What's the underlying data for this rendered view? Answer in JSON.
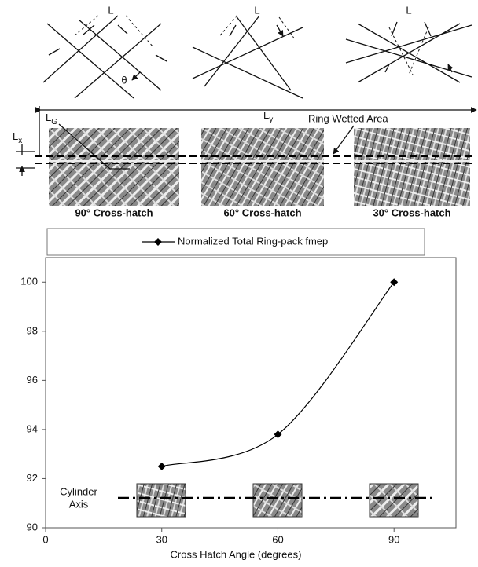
{
  "diagram": {
    "spacing_labels": [
      "L",
      "L",
      "L"
    ],
    "angle_label": "θ",
    "ly": {
      "main": "L",
      "sub": "y"
    },
    "lx": {
      "main": "L",
      "sub": "x"
    },
    "lg": {
      "main": "L",
      "sub": "G"
    },
    "wetted_label": "Ring Wetted Area",
    "patterns": [
      "90° Cross-hatch",
      "60° Cross-hatch",
      "30° Cross-hatch"
    ]
  },
  "chart_data": {
    "type": "line",
    "x_label": "Cross Hatch Angle (degrees)",
    "annotation": [
      "Cylinder",
      "Axis"
    ],
    "x": [
      30,
      60,
      90
    ],
    "series": [
      {
        "name": "Normalized Total Ring-pack fmep",
        "color": "#000000",
        "values": [
          92.5,
          93.8,
          100
        ]
      }
    ],
    "xlim": [
      0,
      106
    ],
    "xticks": [
      0,
      30,
      60,
      90
    ],
    "ylim": [
      90,
      101
    ],
    "yticks": [
      90,
      92,
      94,
      96,
      98,
      100
    ]
  }
}
